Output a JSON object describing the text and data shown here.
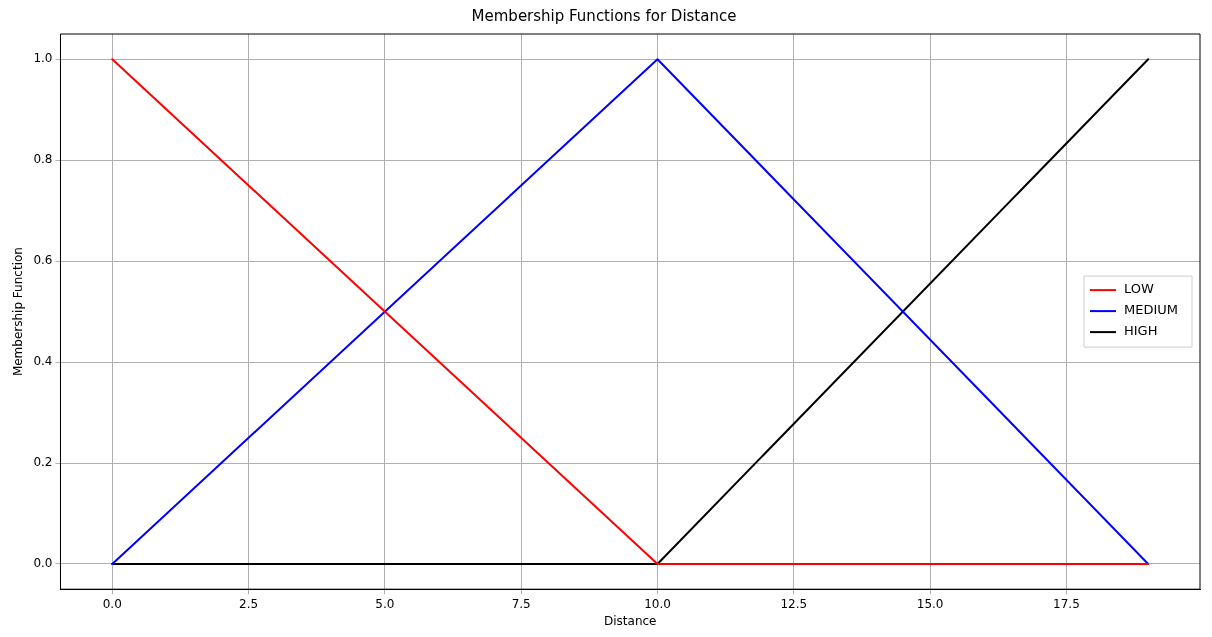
{
  "chart_data": {
    "type": "line",
    "title": "Membership Functions for Distance",
    "xlabel": "Distance",
    "ylabel": "Membership Function",
    "series": [
      {
        "name": "LOW",
        "color": "#ff0000",
        "x": [
          0,
          10,
          19
        ],
        "values": [
          1,
          0,
          0
        ]
      },
      {
        "name": "MEDIUM",
        "color": "#0000ff",
        "x": [
          0,
          10,
          19
        ],
        "values": [
          0,
          1,
          0
        ]
      },
      {
        "name": "HIGH",
        "color": "#000000",
        "x": [
          0,
          10,
          19
        ],
        "values": [
          0,
          0,
          1
        ]
      }
    ],
    "xlim": [
      -0.95,
      19.95
    ],
    "ylim": [
      -0.05,
      1.05
    ],
    "xticks": [
      {
        "value": 0,
        "label": "0.0"
      },
      {
        "value": 2.5,
        "label": "2.5"
      },
      {
        "value": 5,
        "label": "5.0"
      },
      {
        "value": 7.5,
        "label": "7.5"
      },
      {
        "value": 10,
        "label": "10.0"
      },
      {
        "value": 12.5,
        "label": "12.5"
      },
      {
        "value": 15,
        "label": "15.0"
      },
      {
        "value": 17.5,
        "label": "17.5"
      }
    ],
    "yticks": [
      {
        "value": 0,
        "label": "0.0"
      },
      {
        "value": 0.2,
        "label": "0.2"
      },
      {
        "value": 0.4,
        "label": "0.4"
      },
      {
        "value": 0.6,
        "label": "0.6"
      },
      {
        "value": 0.8,
        "label": "0.8"
      },
      {
        "value": 1,
        "label": "1.0"
      }
    ],
    "grid": true,
    "legend": "right",
    "marker": "none",
    "line_style": "solid"
  }
}
